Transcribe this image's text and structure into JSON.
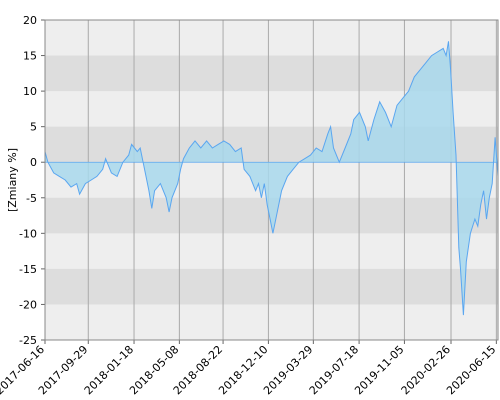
{
  "chart_data": {
    "type": "area",
    "y_label": "[Zmiany %]",
    "x": [
      "2017-06-16",
      "2017-06-23",
      "2017-07-07",
      "2017-07-21",
      "2017-08-04",
      "2017-08-18",
      "2017-09-01",
      "2017-09-08",
      "2017-09-22",
      "2017-10-06",
      "2017-10-20",
      "2017-11-03",
      "2017-11-10",
      "2017-11-24",
      "2017-12-08",
      "2017-12-22",
      "2018-01-05",
      "2018-01-12",
      "2018-01-26",
      "2018-02-02",
      "2018-02-09",
      "2018-02-16",
      "2018-02-23",
      "2018-03-02",
      "2018-03-09",
      "2018-03-23",
      "2018-04-06",
      "2018-04-13",
      "2018-04-20",
      "2018-05-04",
      "2018-05-11",
      "2018-05-18",
      "2018-06-01",
      "2018-06-15",
      "2018-06-29",
      "2018-07-13",
      "2018-07-27",
      "2018-08-10",
      "2018-08-24",
      "2018-09-07",
      "2018-09-21",
      "2018-10-05",
      "2018-10-12",
      "2018-10-26",
      "2018-11-09",
      "2018-11-16",
      "2018-11-23",
      "2018-11-30",
      "2018-12-07",
      "2018-12-14",
      "2018-12-21",
      "2018-12-28",
      "2019-01-11",
      "2019-01-25",
      "2019-02-08",
      "2019-02-22",
      "2019-03-08",
      "2019-03-22",
      "2019-04-05",
      "2019-04-19",
      "2019-05-03",
      "2019-05-10",
      "2019-05-17",
      "2019-05-31",
      "2019-06-14",
      "2019-06-28",
      "2019-07-05",
      "2019-07-19",
      "2019-08-02",
      "2019-08-09",
      "2019-08-23",
      "2019-09-06",
      "2019-09-20",
      "2019-10-04",
      "2019-10-18",
      "2019-11-01",
      "2019-11-15",
      "2019-11-29",
      "2019-12-13",
      "2019-12-27",
      "2020-01-10",
      "2020-01-24",
      "2020-02-07",
      "2020-02-14",
      "2020-02-20",
      "2020-02-25",
      "2020-03-02",
      "2020-03-09",
      "2020-03-16",
      "2020-03-20",
      "2020-03-27",
      "2020-04-03",
      "2020-04-13",
      "2020-04-24",
      "2020-05-01",
      "2020-05-08",
      "2020-05-15",
      "2020-05-22",
      "2020-05-29",
      "2020-06-05",
      "2020-06-12",
      "2020-06-19"
    ],
    "values": [
      1.5,
      0,
      -1.5,
      -2,
      -2.5,
      -3.5,
      -3,
      -4.5,
      -3,
      -2.5,
      -2,
      -1,
      0.5,
      -1.5,
      -2,
      0,
      1,
      2.5,
      1.5,
      2,
      0,
      -2,
      -4,
      -6.5,
      -4,
      -3,
      -5,
      -7,
      -5,
      -3,
      -1,
      0.5,
      2,
      3,
      2,
      3,
      2,
      2.5,
      3,
      2.5,
      1.5,
      2,
      -1,
      -2,
      -4,
      -3,
      -5,
      -3,
      -6,
      -8,
      -10,
      -8,
      -4,
      -2,
      -1,
      0,
      0.5,
      1,
      2,
      1.5,
      4,
      5,
      2,
      0,
      2,
      4,
      6,
      7,
      5,
      3,
      6,
      8.5,
      7,
      5,
      8,
      9,
      10,
      12,
      13,
      14,
      15,
      15.5,
      16,
      15,
      17,
      13,
      7,
      1,
      -12,
      -15,
      -21.5,
      -14,
      -10,
      -8,
      -9,
      -6,
      -4,
      -8,
      -5,
      -3,
      3.5,
      -2
    ],
    "xlim": [
      "2017-06-16",
      "2020-06-19"
    ],
    "xticks": [
      "2017-06-16",
      "2017-09-29",
      "2018-01-18",
      "2018-05-08",
      "2018-08-22",
      "2018-12-10",
      "2019-03-29",
      "2019-07-18",
      "2019-11-05",
      "2020-02-26",
      "2020-06-15"
    ],
    "ylim": [
      -25,
      20
    ],
    "yticks": [
      -25,
      -20,
      -15,
      -10,
      -5,
      0,
      5,
      10,
      15,
      20
    ],
    "color": "#5aa6f0",
    "fill": "#a8d8ec",
    "grid": true
  }
}
